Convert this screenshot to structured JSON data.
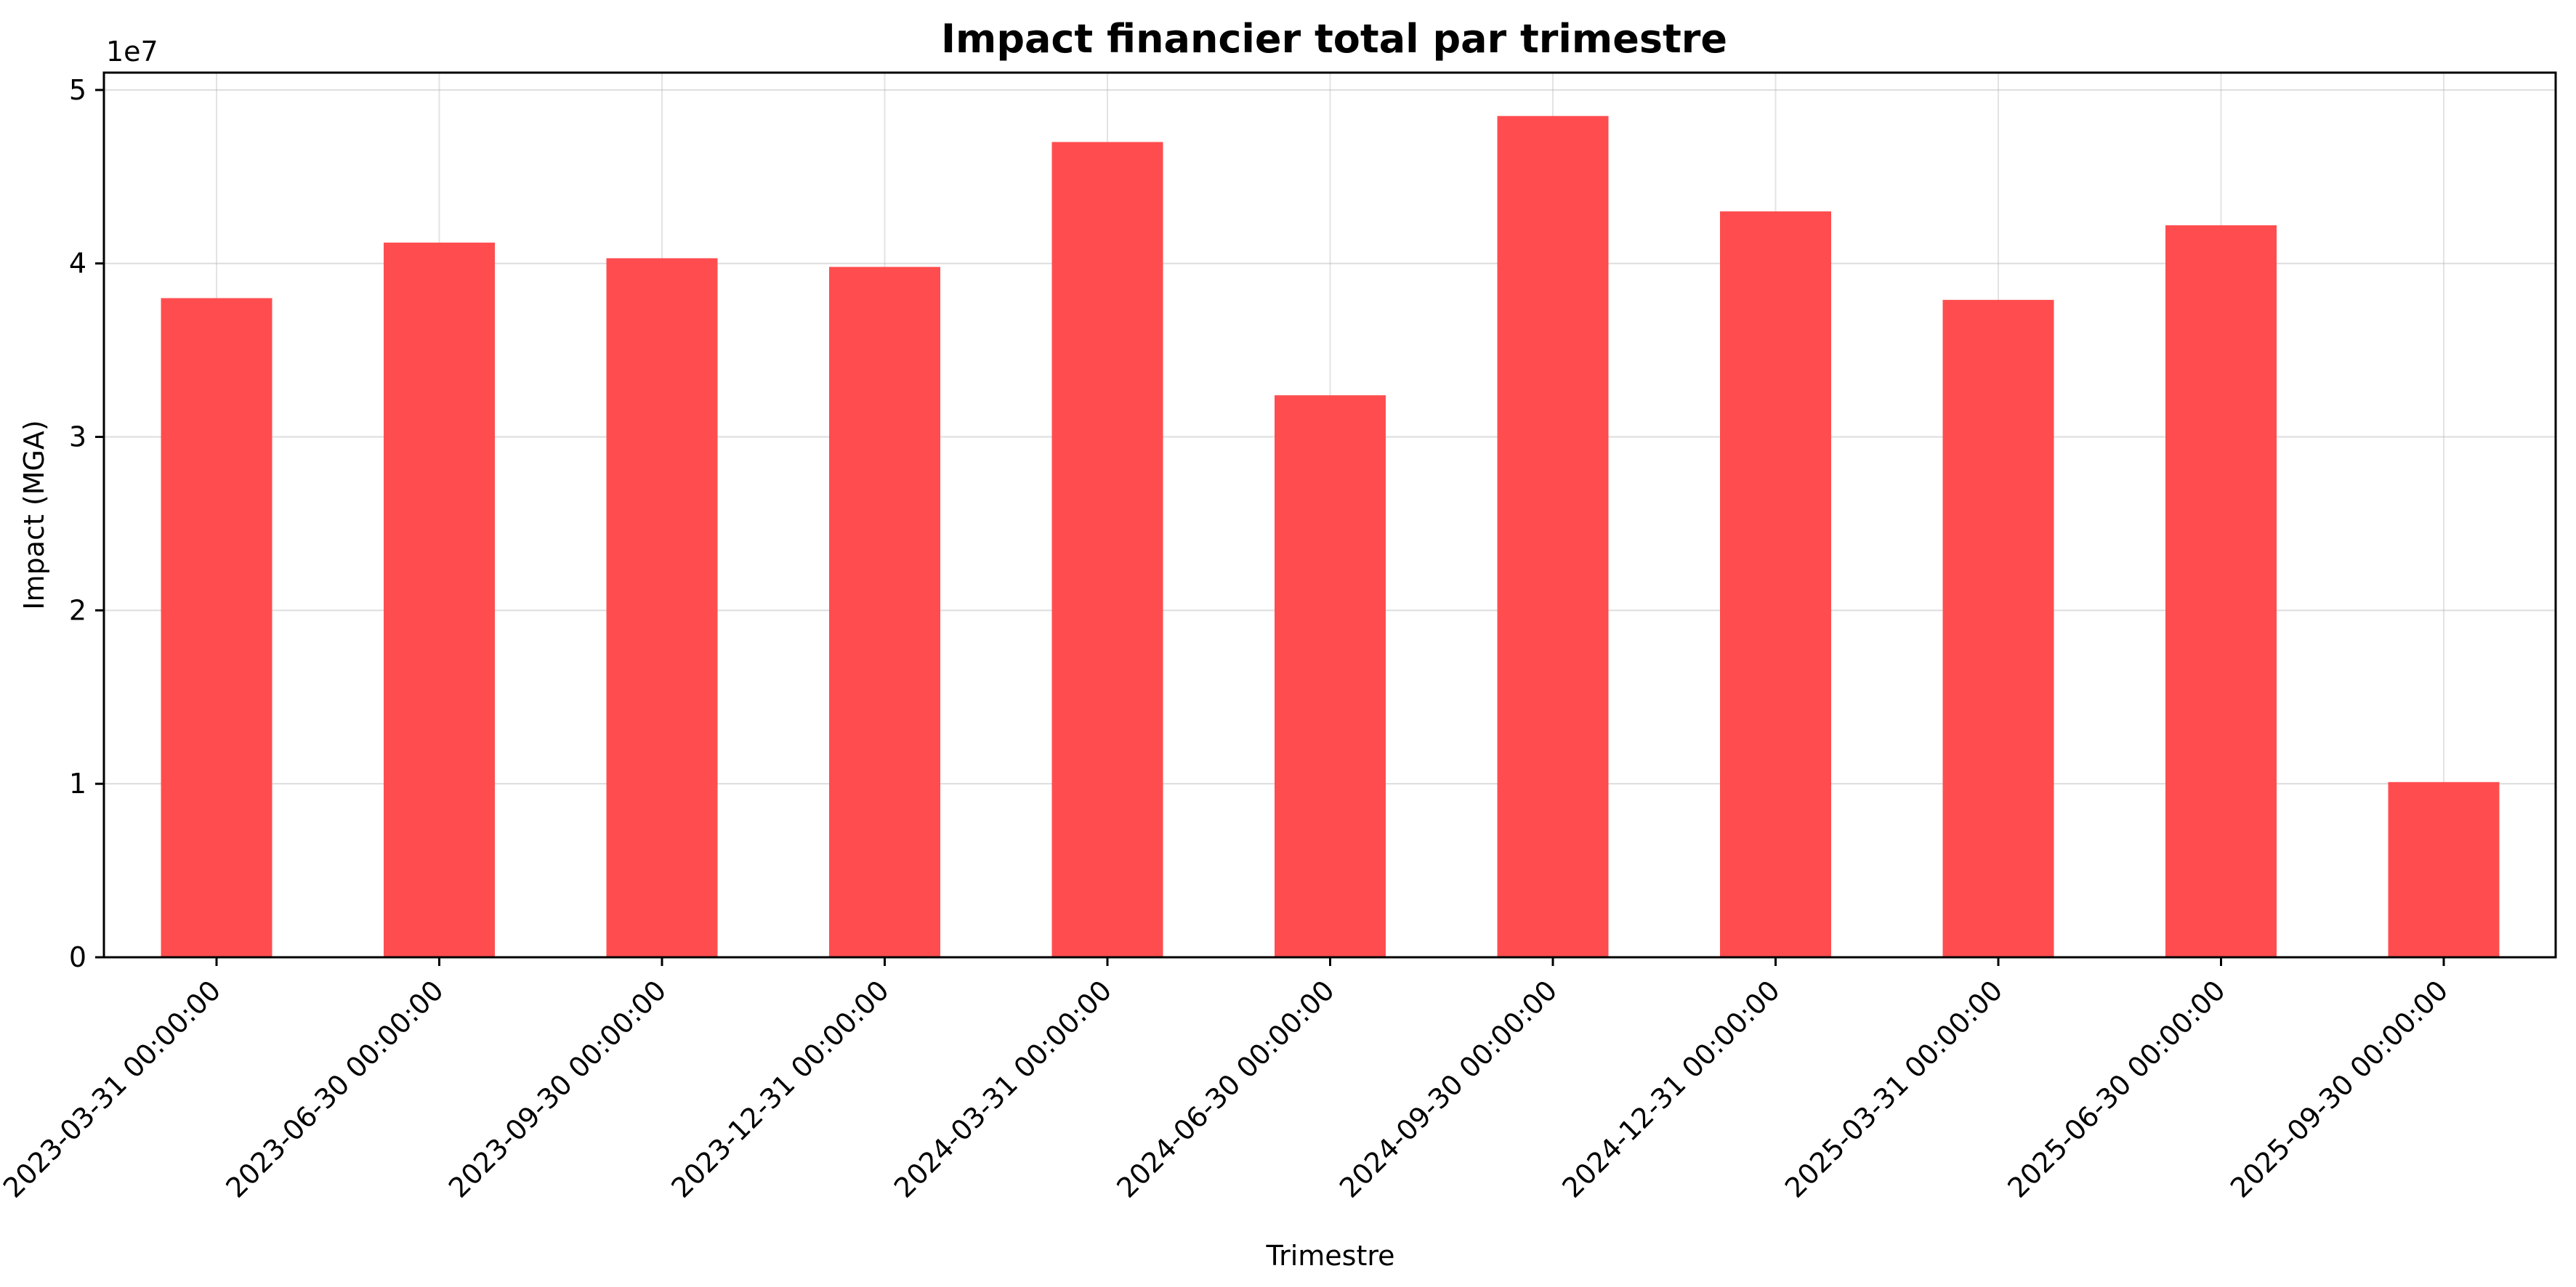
{
  "chart_data": {
    "type": "bar",
    "title": "Impact financier total par trimestre",
    "xlabel": "Trimestre",
    "ylabel": "Impact (MGA)",
    "y_offset_label": "1e7",
    "categories": [
      "2023-03-31 00:00:00",
      "2023-06-30 00:00:00",
      "2023-09-30 00:00:00",
      "2023-12-31 00:00:00",
      "2024-03-31 00:00:00",
      "2024-06-30 00:00:00",
      "2024-09-30 00:00:00",
      "2024-12-31 00:00:00",
      "2025-03-31 00:00:00",
      "2025-06-30 00:00:00",
      "2025-09-30 00:00:00"
    ],
    "values": [
      38000000,
      41200000,
      40300000,
      39800000,
      47000000,
      32400000,
      48500000,
      43000000,
      37900000,
      42200000,
      10100000
    ],
    "ylim": [
      0,
      51000000
    ],
    "yticks": [
      0,
      1,
      2,
      3,
      4,
      5
    ],
    "ytick_scale": 10000000,
    "grid": true,
    "bar_color": "#ff4d4f"
  }
}
